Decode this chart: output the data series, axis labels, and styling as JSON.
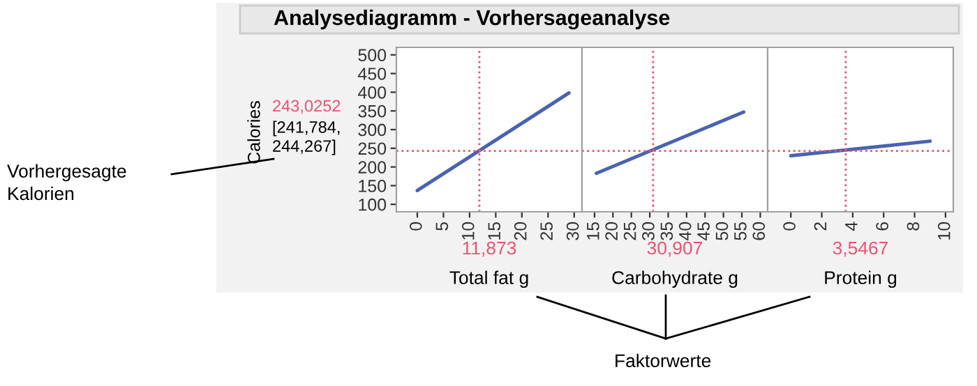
{
  "chart_data": [
    {
      "type": "line",
      "title": "Analysediagramm - Vorhersageanalyse",
      "ylabel": "Calories",
      "xlabel": "Total fat g",
      "x": [
        0,
        29
      ],
      "series": [
        {
          "color": "#4a63b0",
          "values": [
            137,
            398
          ]
        }
      ],
      "xlim": [
        -4,
        31.5
      ],
      "xticks": [
        0,
        5,
        10,
        15,
        20,
        25,
        30
      ],
      "ylim": [
        80,
        520
      ],
      "yticks": [
        100,
        150,
        200,
        250,
        300,
        350,
        400,
        450,
        500
      ],
      "ref_lines": [
        {
          "axis": "x",
          "value": 11.873,
          "label": "11,873",
          "color": "#f0506e",
          "line_style": "dotted"
        },
        {
          "axis": "y",
          "value": 243.0252,
          "label": "243,0252",
          "color": "#f0506e",
          "line_style": "dotted"
        }
      ],
      "annotations": [
        "[241,784, 244,267]",
        "Vorhergesagte Kalorien",
        "Faktorwerte"
      ],
      "grid": false,
      "legend": false
    },
    {
      "type": "line",
      "xlabel": "Carbohydrate g",
      "x": [
        15.5,
        55.5
      ],
      "series": [
        {
          "color": "#4a63b0",
          "values": [
            183,
            347
          ]
        }
      ],
      "xlim": [
        11.6,
        62
      ],
      "xticks": [
        15,
        20,
        25,
        30,
        35,
        40,
        45,
        50,
        55,
        60
      ],
      "ylim": [
        80,
        520
      ],
      "yticks": [
        100,
        150,
        200,
        250,
        300,
        350,
        400,
        450,
        500
      ],
      "tick_labels": "x",
      "ref_lines": [
        {
          "axis": "x",
          "value": 30.907,
          "label": "30,907",
          "color": "#f0506e",
          "line_style": "dotted"
        },
        {
          "axis": "y",
          "value": 243.0252,
          "color": "#f0506e",
          "line_style": "dotted"
        }
      ],
      "grid": false,
      "legend": false
    },
    {
      "type": "line",
      "xlabel": "Protein g",
      "x": [
        0,
        9
      ],
      "series": [
        {
          "color": "#4a63b0",
          "values": [
            230,
            269
          ]
        }
      ],
      "xlim": [
        -1.5,
        10.5
      ],
      "xticks": [
        0,
        2,
        4,
        6,
        8,
        10
      ],
      "ylim": [
        80,
        520
      ],
      "yticks": [
        100,
        150,
        200,
        250,
        300,
        350,
        400,
        450,
        500
      ],
      "tick_labels": "x",
      "ref_lines": [
        {
          "axis": "x",
          "value": 3.5467,
          "label": "3,5467",
          "color": "#f0506e",
          "line_style": "dotted"
        },
        {
          "axis": "y",
          "value": 243.0252,
          "color": "#f0506e",
          "line_style": "dotted"
        }
      ],
      "grid": false,
      "legend": false
    }
  ]
}
